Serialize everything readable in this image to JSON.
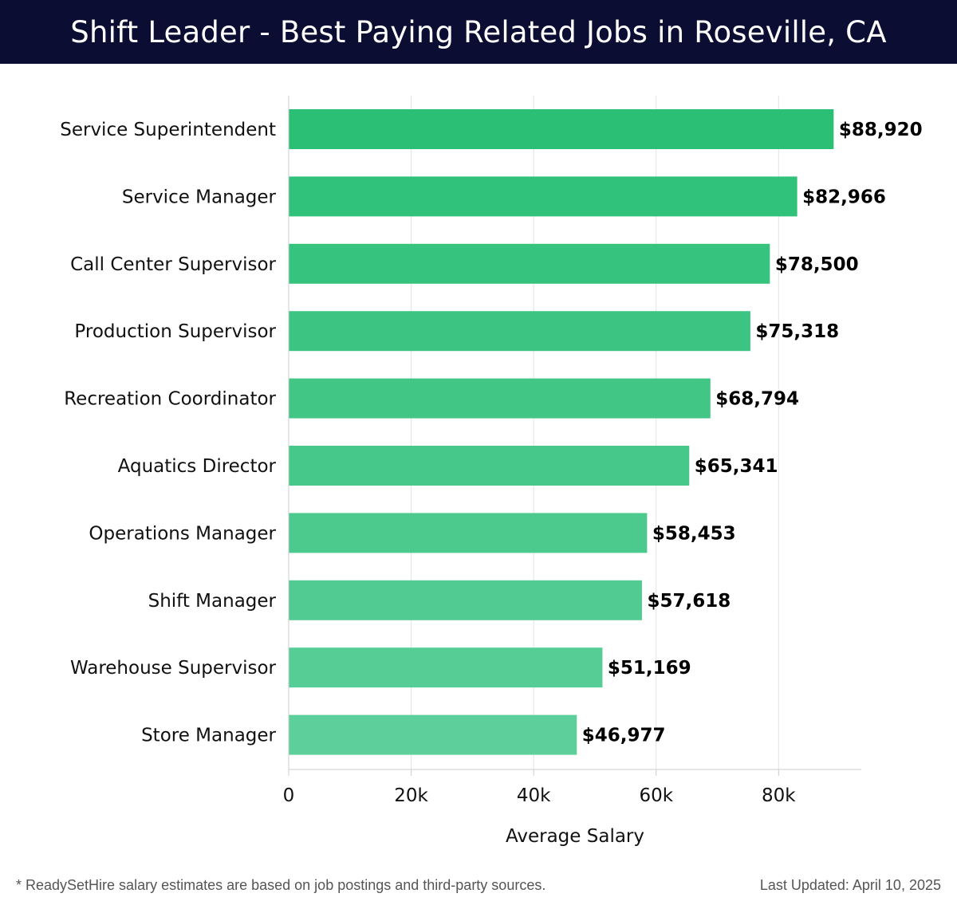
{
  "header": {
    "title": "Shift Leader - Best Paying Related Jobs in Roseville, CA"
  },
  "chart_data": {
    "type": "bar",
    "orientation": "horizontal",
    "title": "Shift Leader - Best Paying Related Jobs in Roseville, CA",
    "xlabel": "Average Salary",
    "ylabel": "",
    "xlim": [
      0,
      93500
    ],
    "grid": true,
    "categories": [
      "Service Superintendent",
      "Service Manager",
      "Call Center Supervisor",
      "Production Supervisor",
      "Recreation Coordinator",
      "Aquatics Director",
      "Operations Manager",
      "Shift Manager",
      "Warehouse Supervisor",
      "Store Manager"
    ],
    "values": [
      88920,
      82966,
      78500,
      75318,
      68794,
      65341,
      58453,
      57618,
      51169,
      46977
    ],
    "value_labels": [
      "$88,920",
      "$82,966",
      "$78,500",
      "$75,318",
      "$68,794",
      "$65,341",
      "$58,453",
      "$57,618",
      "$51,169",
      "$46,977"
    ],
    "ticks": [
      0,
      20000,
      40000,
      60000,
      80000
    ],
    "tick_labels": [
      "0",
      "20k",
      "40k",
      "60k",
      "80k"
    ],
    "colors": {
      "bar_top": "#2bbf76",
      "bar_bottom": "#5ccf9a",
      "grid": "#e3e3e3",
      "axis": "#cccccc",
      "title_bg": "#0b0d33"
    }
  },
  "footer": {
    "note": "* ReadySetHire salary estimates are based on job postings and third-party sources.",
    "updated": "Last Updated: April 10, 2025"
  }
}
